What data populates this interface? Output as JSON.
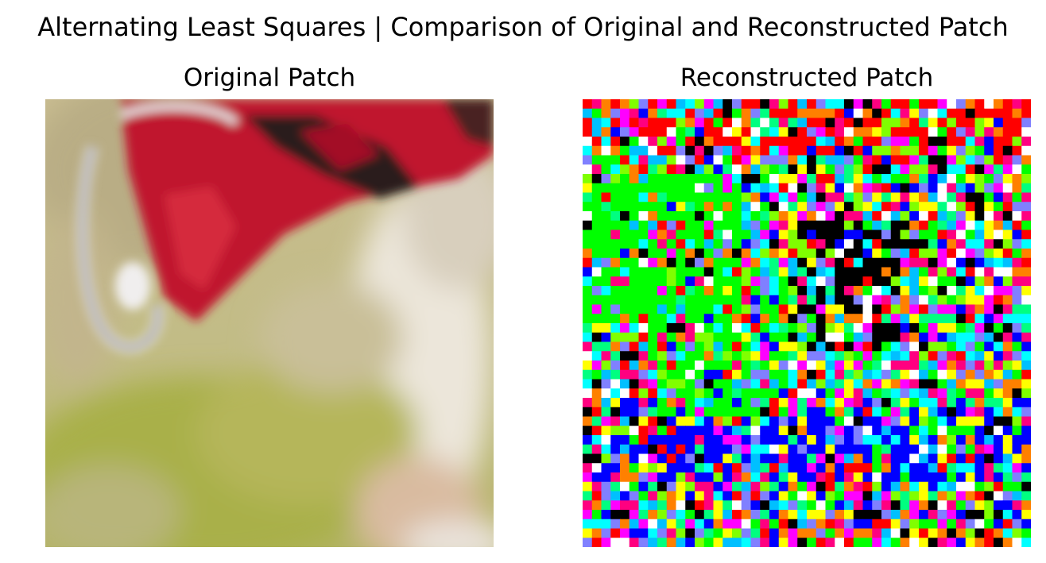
{
  "figure": {
    "title": "Alternating Least Squares | Comparison of Original and Reconstructed Patch"
  },
  "panels": [
    {
      "title": "Original Patch",
      "image": "photo-patch-dog-red-collar"
    },
    {
      "title": "Reconstructed Patch",
      "image": "noisy-rgb-reconstruction"
    }
  ],
  "colors": {
    "background": "#ffffff",
    "collar_red": "#c0152e",
    "fur_tan": "#c8bd8e",
    "grass_green": "#a9b04a"
  }
}
